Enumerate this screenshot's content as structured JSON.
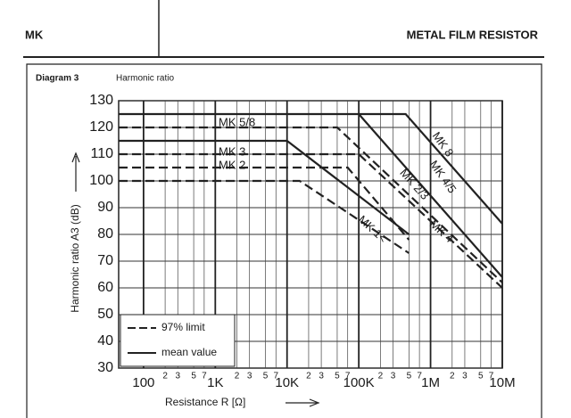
{
  "header": {
    "left": "MK",
    "right": "METAL FILM RESISTOR"
  },
  "chart_data": {
    "type": "line",
    "label": "Diagram 3",
    "title": "Harmonic ratio",
    "x_label": "Resistance R [Ω]",
    "y_label": "Harmonic ratio A3 (dB)",
    "xscale": "log",
    "xlim": [
      45,
      10000000
    ],
    "ylim": [
      30,
      130
    ],
    "grid": true,
    "legend": "lower left",
    "yticks": [
      30,
      40,
      50,
      60,
      70,
      80,
      90,
      100,
      110,
      120,
      130
    ],
    "xticks": [
      {
        "value": 100,
        "label": "100"
      },
      {
        "value": 1000,
        "label": "1K"
      },
      {
        "value": 10000,
        "label": "10K"
      },
      {
        "value": 100000,
        "label": "100K"
      },
      {
        "value": 1000000,
        "label": "1M"
      },
      {
        "value": 10000000,
        "label": "10M"
      }
    ],
    "minor_xticks": [
      {
        "value": 200,
        "label": "2"
      },
      {
        "value": 300,
        "label": "3"
      },
      {
        "value": 500,
        "label": "5"
      },
      {
        "value": 700,
        "label": "7"
      },
      {
        "value": 2000,
        "label": "2"
      },
      {
        "value": 3000,
        "label": "3"
      },
      {
        "value": 5000,
        "label": "5"
      },
      {
        "value": 7000,
        "label": "7"
      },
      {
        "value": 20000,
        "label": "2"
      },
      {
        "value": 30000,
        "label": "3"
      },
      {
        "value": 50000,
        "label": "5"
      },
      {
        "value": 70000,
        "label": "7"
      },
      {
        "value": 200000,
        "label": "2"
      },
      {
        "value": 300000,
        "label": "3"
      },
      {
        "value": 500000,
        "label": "5"
      },
      {
        "value": 700000,
        "label": "7"
      },
      {
        "value": 2000000,
        "label": "2"
      },
      {
        "value": 3000000,
        "label": "3"
      },
      {
        "value": 5000000,
        "label": "5"
      },
      {
        "value": 7000000,
        "label": "7"
      }
    ],
    "series": [
      {
        "name": "97% limit",
        "color": "#222222",
        "dash": true,
        "x": [
          45,
          50000,
          10000000,
          null,
          45,
          100000,
          10000000,
          null,
          45,
          70000,
          500000,
          null,
          45,
          15000,
          500000
        ],
        "values": [
          120,
          120,
          62,
          null,
          110,
          110,
          60,
          null,
          105,
          105,
          78,
          null,
          100,
          100,
          73
        ]
      },
      {
        "name": "mean value",
        "color": "#222222",
        "dash": false,
        "x": [
          45,
          450000,
          10000000,
          null,
          100000,
          10000000,
          null,
          45,
          10000,
          500000
        ],
        "values": [
          125,
          125,
          84,
          null,
          125,
          64,
          null,
          115,
          115,
          80
        ]
      }
    ],
    "annotations": [
      "MK 5/8",
      "MK 3",
      "MK 2",
      "MK 8",
      "MK 4/5",
      "MK 2/3",
      "MK 1<",
      "MK 4"
    ]
  }
}
